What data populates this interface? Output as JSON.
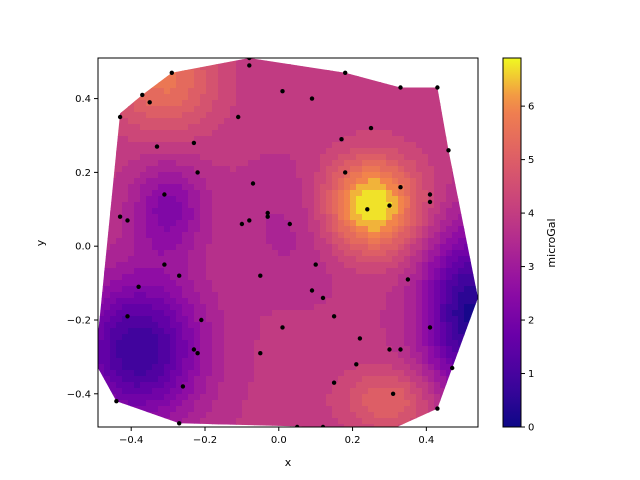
{
  "chart_data": {
    "type": "contour",
    "title": "",
    "xlabel": "x",
    "ylabel": "y",
    "xlim": [
      -0.49,
      0.54
    ],
    "ylim": [
      -0.49,
      0.51
    ],
    "x_ticks": [
      -0.4,
      -0.2,
      0.0,
      0.2,
      0.4
    ],
    "x_tick_labels": [
      "−0.4",
      "−0.2",
      "0.0",
      "0.2",
      "0.4"
    ],
    "y_ticks": [
      -0.4,
      -0.2,
      0.0,
      0.2,
      0.4
    ],
    "y_tick_labels": [
      "−0.4",
      "−0.2",
      "0.0",
      "0.2",
      "0.4"
    ],
    "colorbar": {
      "label": "microGal",
      "colormap": "plasma",
      "range": [
        0,
        6.9
      ],
      "ticks": [
        0,
        1,
        2,
        3,
        4,
        5,
        6
      ],
      "tick_labels": [
        "0",
        "1",
        "2",
        "3",
        "4",
        "5",
        "6"
      ]
    },
    "hull": [
      [
        -0.44,
        -0.42
      ],
      [
        -0.49,
        -0.33
      ],
      [
        -0.49,
        -0.24
      ],
      [
        -0.43,
        0.36
      ],
      [
        -0.37,
        0.41
      ],
      [
        -0.29,
        0.47
      ],
      [
        -0.08,
        0.51
      ],
      [
        0.18,
        0.47
      ],
      [
        0.33,
        0.43
      ],
      [
        0.43,
        0.43
      ],
      [
        0.46,
        0.26
      ],
      [
        0.54,
        -0.14
      ],
      [
        0.47,
        -0.33
      ],
      [
        0.43,
        -0.44
      ],
      [
        0.32,
        -0.49
      ],
      [
        0.12,
        -0.49
      ],
      [
        -0.27,
        -0.48
      ]
    ],
    "blobs": [
      {
        "x": 0.25,
        "y": 0.11,
        "sx": 0.09,
        "sy": 0.09,
        "amp": 3.2
      },
      {
        "x": -0.31,
        "y": 0.45,
        "sx": 0.1,
        "sy": 0.1,
        "amp": 1.7
      },
      {
        "x": 0.3,
        "y": -0.42,
        "sx": 0.09,
        "sy": 0.06,
        "amp": 1.3
      },
      {
        "x": -0.38,
        "y": -0.28,
        "sx": 0.12,
        "sy": 0.14,
        "amp": -3.2
      },
      {
        "x": 0.52,
        "y": -0.18,
        "sx": 0.09,
        "sy": 0.16,
        "amp": -3.6
      },
      {
        "x": -0.3,
        "y": 0.1,
        "sx": 0.07,
        "sy": 0.09,
        "amp": -1.6
      },
      {
        "x": 0.05,
        "y": 0.05,
        "sx": 0.12,
        "sy": 0.12,
        "amp": -0.6
      }
    ],
    "base_value": 3.9,
    "points": [
      [
        -0.08,
        0.51
      ],
      [
        -0.29,
        0.47
      ],
      [
        -0.37,
        0.41
      ],
      [
        -0.43,
        0.35
      ],
      [
        -0.35,
        0.39
      ],
      [
        0.18,
        0.47
      ],
      [
        -0.08,
        0.49
      ],
      [
        0.33,
        0.43
      ],
      [
        0.43,
        0.43
      ],
      [
        0.01,
        0.42
      ],
      [
        0.09,
        0.4
      ],
      [
        -0.11,
        0.35
      ],
      [
        0.25,
        0.32
      ],
      [
        0.17,
        0.29
      ],
      [
        -0.33,
        0.27
      ],
      [
        -0.23,
        0.28
      ],
      [
        0.46,
        0.26
      ],
      [
        0.18,
        0.2
      ],
      [
        -0.22,
        0.2
      ],
      [
        -0.07,
        0.17
      ],
      [
        0.33,
        0.16
      ],
      [
        0.41,
        0.14
      ],
      [
        -0.31,
        0.14
      ],
      [
        0.41,
        0.12
      ],
      [
        0.3,
        0.11
      ],
      [
        0.24,
        0.1
      ],
      [
        -0.03,
        0.09
      ],
      [
        -0.43,
        0.08
      ],
      [
        -0.41,
        0.07
      ],
      [
        -0.03,
        0.08
      ],
      [
        -0.08,
        0.07
      ],
      [
        -0.1,
        0.06
      ],
      [
        0.03,
        0.06
      ],
      [
        0.1,
        -0.05
      ],
      [
        -0.31,
        -0.05
      ],
      [
        -0.05,
        -0.08
      ],
      [
        -0.27,
        -0.08
      ],
      [
        0.35,
        -0.09
      ],
      [
        0.09,
        -0.12
      ],
      [
        -0.38,
        -0.11
      ],
      [
        0.12,
        -0.14
      ],
      [
        0.15,
        -0.19
      ],
      [
        -0.21,
        -0.2
      ],
      [
        -0.41,
        -0.19
      ],
      [
        0.41,
        -0.22
      ],
      [
        0.01,
        -0.22
      ],
      [
        0.22,
        -0.25
      ],
      [
        -0.23,
        -0.28
      ],
      [
        -0.22,
        -0.29
      ],
      [
        0.33,
        -0.28
      ],
      [
        0.3,
        -0.28
      ],
      [
        -0.05,
        -0.29
      ],
      [
        0.21,
        -0.32
      ],
      [
        0.47,
        -0.33
      ],
      [
        -0.26,
        -0.38
      ],
      [
        0.15,
        -0.37
      ],
      [
        0.31,
        -0.4
      ],
      [
        -0.44,
        -0.42
      ],
      [
        0.43,
        -0.44
      ],
      [
        -0.27,
        -0.48
      ],
      [
        0.12,
        -0.49
      ],
      [
        0.05,
        -0.49
      ]
    ]
  }
}
